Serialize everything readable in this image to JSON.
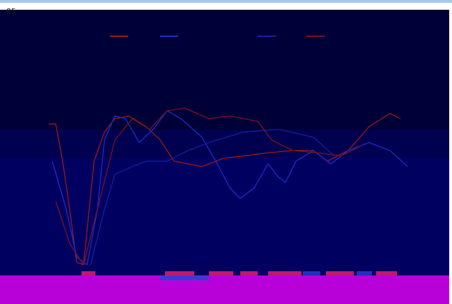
{
  "chart_data": {
    "type": "line",
    "title": "85",
    "xlim": [
      0,
      645
    ],
    "ylim": [
      0,
      100
    ],
    "series": [
      {
        "color": "#a01818",
        "x": [
          70,
          80,
          90,
          100,
          110,
          120,
          135,
          150,
          165,
          185,
          210,
          230,
          250,
          270,
          290,
          320,
          350,
          380,
          420,
          450,
          470,
          500,
          530,
          560,
          575
        ],
        "values": [
          57,
          57,
          43,
          25,
          5,
          4,
          43,
          54,
          59,
          60,
          56,
          51,
          43,
          42,
          41,
          44,
          45,
          46,
          47,
          47,
          43,
          47,
          56,
          61,
          59
        ]
      },
      {
        "color": "#1a2ed0",
        "x": [
          75,
          95,
          110,
          125,
          140,
          150,
          165,
          180,
          200,
          220,
          240,
          260,
          290,
          310,
          330,
          345,
          365,
          385,
          400,
          410,
          425,
          450,
          475,
          500,
          530,
          560,
          585
        ],
        "values": [
          43,
          25,
          7,
          4,
          25,
          51,
          60,
          59,
          50,
          55,
          62,
          59,
          52,
          43,
          33,
          29,
          33,
          42,
          37,
          35,
          43,
          47,
          42,
          47,
          50,
          47,
          41
        ]
      },
      {
        "color": "#1620a0",
        "x": [
          130,
          150,
          165,
          190,
          210,
          240,
          270,
          300,
          350,
          400,
          450,
          480
        ],
        "values": [
          4,
          25,
          38,
          41,
          43,
          43,
          47,
          50,
          54,
          55,
          52,
          45
        ]
      },
      {
        "color": "#801020",
        "x": [
          80,
          100,
          120,
          140,
          165,
          190,
          215,
          240,
          265,
          300,
          330,
          370,
          390,
          420,
          460,
          490,
          520
        ],
        "values": [
          28,
          12,
          4,
          25,
          51,
          59,
          55,
          62,
          63,
          59,
          60,
          58,
          51,
          47,
          46,
          45,
          49
        ]
      }
    ]
  }
}
